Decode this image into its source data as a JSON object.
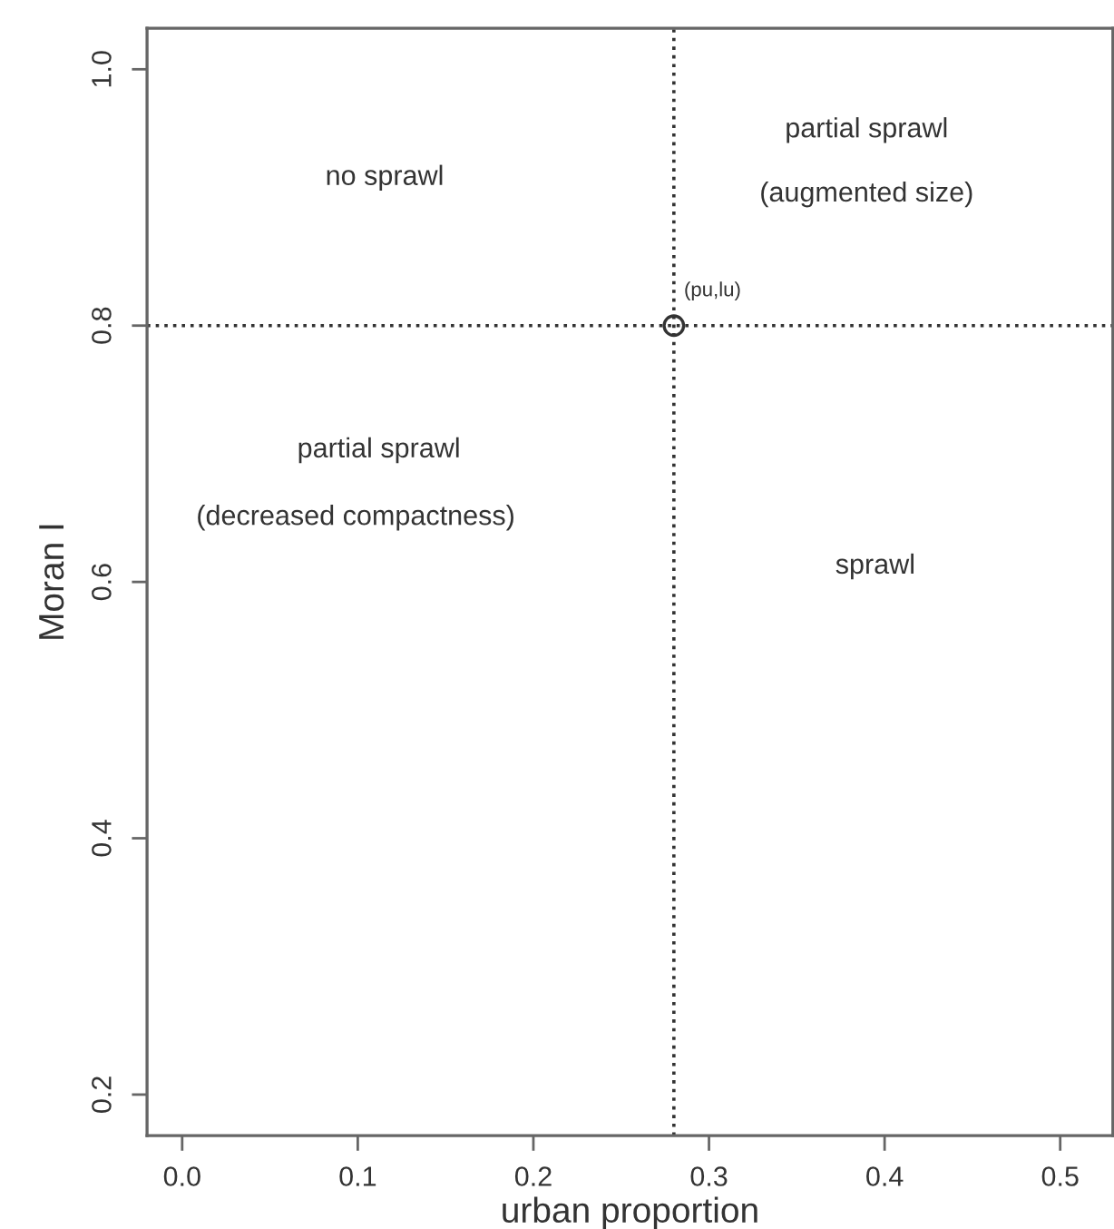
{
  "chart_data": {
    "type": "scatter",
    "xlabel": "urban proportion",
    "ylabel": "Moran I",
    "x": [
      0.28
    ],
    "values": [
      0.8
    ],
    "marker": "circle",
    "xlim": [
      -0.02,
      0.53
    ],
    "ylim": [
      0.168,
      1.032
    ],
    "xticks": [
      {
        "value": 0.0,
        "label": "0.0"
      },
      0.1,
      0.2,
      0.3,
      0.4,
      0.5
    ],
    "yticks": [
      0.2,
      0.4,
      0.6,
      0.8,
      {
        "value": 1.0,
        "label": "1.0"
      }
    ],
    "grid": false,
    "ref_lines": [
      {
        "axis": "x",
        "value": 0.28,
        "line_style": "dotted"
      },
      {
        "axis": "y",
        "value": 0.8,
        "line_style": "dotted"
      }
    ],
    "annotations": [
      "no sprawl",
      "partial sprawl",
      "(augmented size)",
      "partial sprawl",
      "(decreased compactness)",
      "sprawl",
      {
        "text": "(pu,lu)",
        "x": 0.28,
        "y": 0.8
      }
    ]
  }
}
